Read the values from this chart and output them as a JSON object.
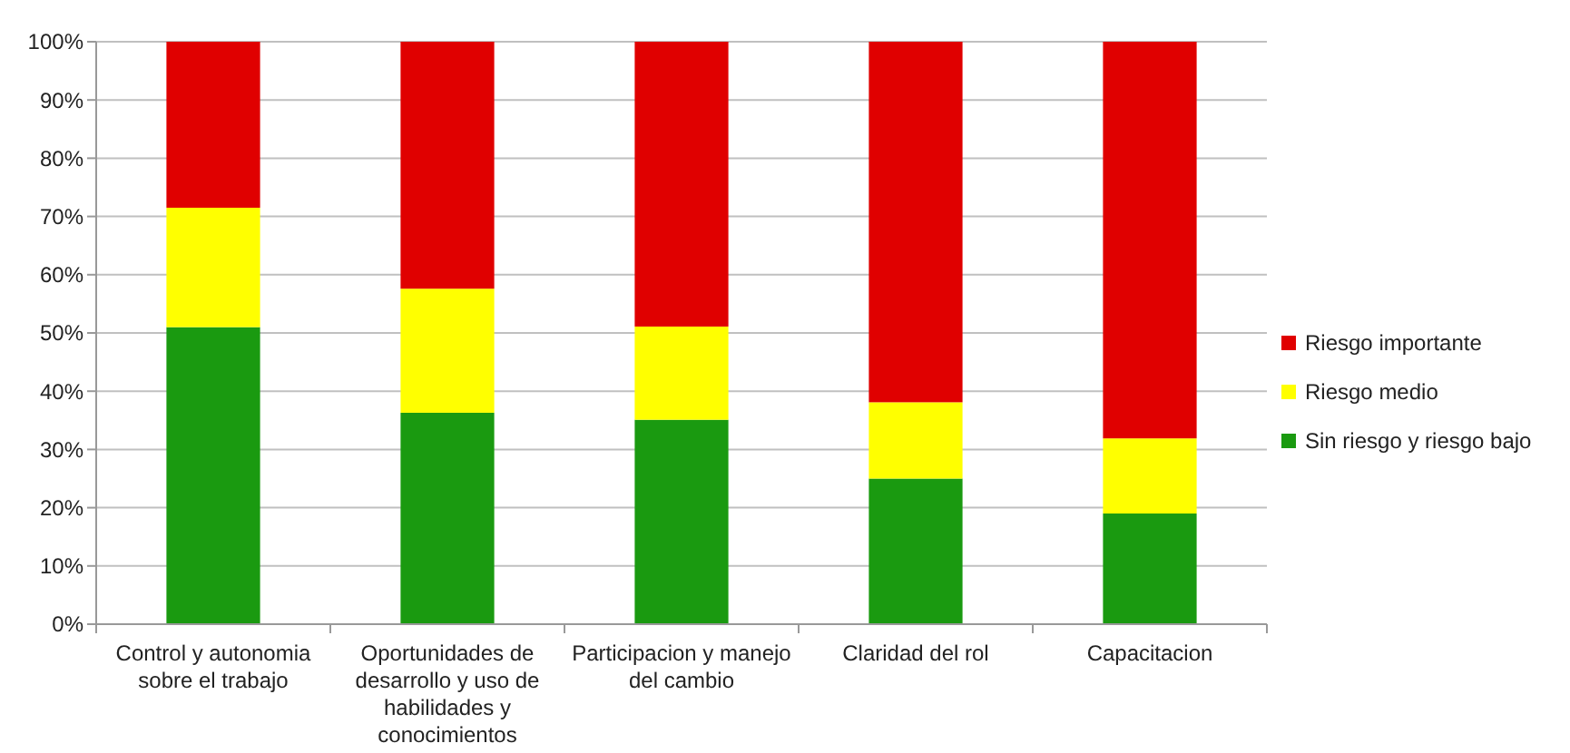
{
  "chart_data": {
    "type": "bar",
    "stacked": true,
    "categories": [
      "Control y autonomia sobre el trabajo",
      "Oportunidades de desarrollo y uso de habilidades y conocimientos",
      "Participacion y manejo del cambio",
      "Claridad del rol",
      "Capacitacion"
    ],
    "series": [
      {
        "name": "Sin riesgo y riesgo bajo",
        "color": "#1a9a10",
        "values": [
          51,
          36.3,
          35.1,
          25,
          19
        ]
      },
      {
        "name": "Riesgo medio",
        "color": "#ffff00",
        "values": [
          20.5,
          21.3,
          16,
          13.1,
          12.9
        ]
      },
      {
        "name": "Riesgo importante",
        "color": "#e00000",
        "values": [
          28.5,
          42.4,
          48.9,
          61.9,
          68.1
        ]
      }
    ],
    "ylim": [
      0,
      100
    ],
    "yticks": [
      {
        "value": 0,
        "label": "0%"
      },
      {
        "value": 10,
        "label": "10%"
      },
      {
        "value": 20,
        "label": "20%"
      },
      {
        "value": 30,
        "label": "30%"
      },
      {
        "value": 40,
        "label": "40%"
      },
      {
        "value": 50,
        "label": "50%"
      },
      {
        "value": 60,
        "label": "60%"
      },
      {
        "value": 70,
        "label": "70%"
      },
      {
        "value": 80,
        "label": "80%"
      },
      {
        "value": 90,
        "label": "90%"
      },
      {
        "value": 100,
        "label": "100%"
      }
    ],
    "grid": "y",
    "legend": "right"
  }
}
